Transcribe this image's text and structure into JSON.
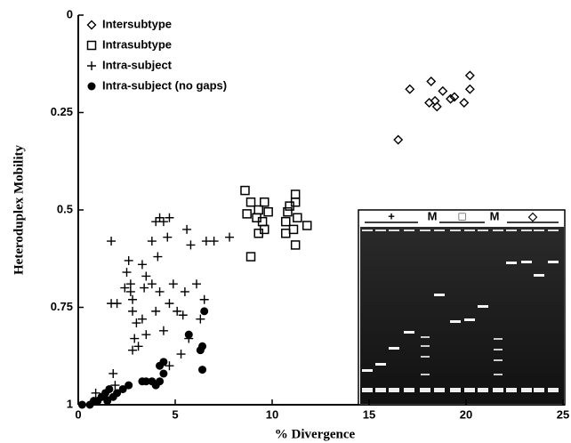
{
  "chart_data": {
    "type": "scatter",
    "x_label": "% Divergence",
    "y_label": "Heteroduplex Mobility",
    "xlim": [
      0,
      25
    ],
    "xticks": [
      0,
      5,
      10,
      15,
      20,
      25
    ],
    "ylim": [
      0,
      1
    ],
    "yticks": [
      0,
      0.25,
      0.5,
      0.75,
      1
    ],
    "y_inverted": true,
    "inset_labels": [
      "+",
      "M",
      "□",
      "M",
      "◇"
    ],
    "series": [
      {
        "name": "Intersubtype",
        "marker": "diamond",
        "color": "#000000",
        "x": [
          16.5,
          17.1,
          18.2,
          18.4,
          18.8,
          18.1,
          18.5,
          19.2,
          19.4,
          19.9,
          20.2,
          20.2
        ],
        "values": [
          0.32,
          0.19,
          0.17,
          0.22,
          0.195,
          0.225,
          0.235,
          0.215,
          0.21,
          0.225,
          0.155,
          0.19
        ]
      },
      {
        "name": "Intrasubtype",
        "marker": "square",
        "color": "#000000",
        "x": [
          8.6,
          8.9,
          8.7,
          8.9,
          9.3,
          9.6,
          9.3,
          9.6,
          9.2,
          9.5,
          9.8,
          11.2,
          11.2,
          10.9,
          10.8,
          10.7,
          11.3,
          11.1,
          11.8,
          11.2,
          10.7
        ],
        "values": [
          0.45,
          0.48,
          0.51,
          0.62,
          0.56,
          0.55,
          0.5,
          0.48,
          0.52,
          0.53,
          0.505,
          0.46,
          0.48,
          0.49,
          0.505,
          0.53,
          0.52,
          0.55,
          0.54,
          0.59,
          0.56
        ]
      },
      {
        "name": "Intra-subject",
        "marker": "plus",
        "color": "#000000",
        "x": [
          1.7,
          1.7,
          2.0,
          2.4,
          2.5,
          2.6,
          2.7,
          2.7,
          2.8,
          2.8,
          3.0,
          2.8,
          3.1,
          2.9,
          3.3,
          3.4,
          3.5,
          3.3,
          3.8,
          4.0,
          4.2,
          4.4,
          4.7,
          4.6,
          4.1,
          3.8,
          4.2,
          4.0,
          4.4,
          4.7,
          4.9,
          5.1,
          5.4,
          5.5,
          5.6,
          5.8,
          6.1,
          6.3,
          6.5,
          6.6,
          7.0,
          7.8,
          5.3,
          4.7,
          1.8,
          1.9,
          1.4,
          0.9,
          3.5,
          5.7
        ],
        "values": [
          0.58,
          0.74,
          0.74,
          0.7,
          0.66,
          0.63,
          0.69,
          0.71,
          0.73,
          0.76,
          0.79,
          0.86,
          0.85,
          0.83,
          0.78,
          0.7,
          0.67,
          0.64,
          0.58,
          0.53,
          0.52,
          0.53,
          0.52,
          0.57,
          0.62,
          0.69,
          0.71,
          0.76,
          0.81,
          0.74,
          0.69,
          0.76,
          0.77,
          0.71,
          0.55,
          0.59,
          0.69,
          0.78,
          0.73,
          0.58,
          0.58,
          0.57,
          0.87,
          0.9,
          0.92,
          0.95,
          0.98,
          0.97,
          0.82,
          0.83
        ]
      },
      {
        "name": "Intra-subject (no gaps)",
        "marker": "circle",
        "color": "#000000",
        "x": [
          0.2,
          0.6,
          0.8,
          1.0,
          1.2,
          1.4,
          1.6,
          1.8,
          2.0,
          2.3,
          2.6,
          3.3,
          3.5,
          3.8,
          4.0,
          4.2,
          4.2,
          4.4,
          4.4,
          5.7,
          6.3,
          6.4,
          6.5,
          6.4,
          1.5
        ],
        "values": [
          1.0,
          1.0,
          0.99,
          0.99,
          0.98,
          0.97,
          0.96,
          0.98,
          0.97,
          0.96,
          0.95,
          0.94,
          0.94,
          0.94,
          0.95,
          0.94,
          0.9,
          0.89,
          0.92,
          0.82,
          0.86,
          0.85,
          0.76,
          0.91,
          0.99
        ]
      }
    ]
  }
}
